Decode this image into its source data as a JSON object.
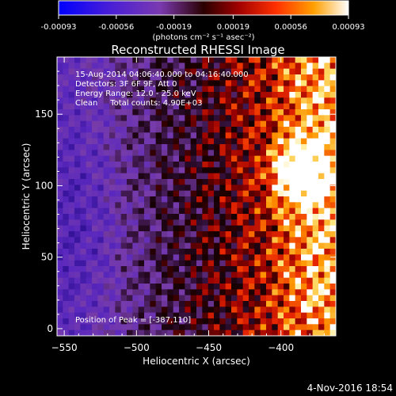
{
  "chart_data": {
    "type": "heatmap",
    "title": "Reconstructed RHESSI Image",
    "colorbar": {
      "min": -0.00093,
      "max": 0.00093,
      "ticks": [
        -0.00093,
        -0.00056,
        -0.00019,
        0.00019,
        0.00056,
        0.00093
      ],
      "tick_labels": [
        "-0.00093",
        "-0.00056",
        "-0.00019",
        "0.00019",
        "0.00056",
        "0.00093"
      ],
      "unit_label": "(photons cm⁻² s⁻¹ asec⁻²)"
    },
    "xlabel": "Heliocentric X (arcsec)",
    "ylabel": "Heliocentric Y (arcsec)",
    "xlim": [
      -555,
      -362
    ],
    "ylim": [
      -5,
      190
    ],
    "xticks": [
      -550,
      -500,
      -450,
      -400
    ],
    "xtick_labels": [
      "−550",
      "−500",
      "−450",
      "−400"
    ],
    "yticks": [
      0,
      50,
      100,
      150
    ],
    "ytick_labels": [
      "0",
      "50",
      "100",
      "150"
    ],
    "annotations": [
      "15-Aug-2014 04:06:40.000 to 04:16:40.000",
      "Detectors: 3F 6F 9F, Att 0",
      "Energy Range: 12.0 - 25.0 keV",
      "Clean     Total counts: 4.90E+03"
    ],
    "peak_label": "Position of Peak = [-387,110]",
    "peak": {
      "x": -387,
      "y": 110
    },
    "grid": false
  },
  "footer": {
    "timestamp": "4-Nov-2016 18:54"
  }
}
